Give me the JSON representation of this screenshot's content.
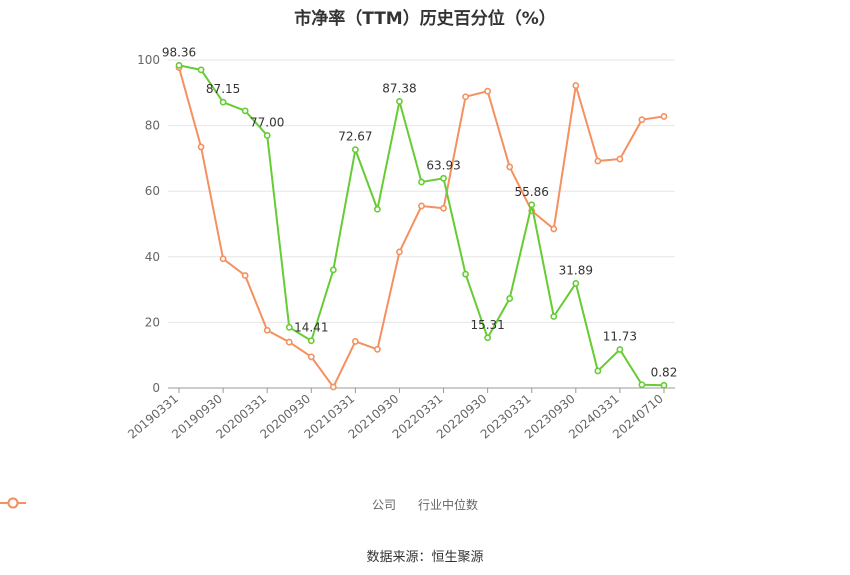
{
  "title": "市净率（TTM）历史百分位（%）",
  "source": "数据来源：恒生聚源",
  "chart_data": {
    "type": "line",
    "title": "市净率（TTM）历史百分位（%）",
    "ylim": [
      0,
      100
    ],
    "y_ticks": [
      "0",
      "20",
      "40",
      "60",
      "80",
      "100"
    ],
    "x_tick_labels": [
      "20190331",
      "20190930",
      "20200331",
      "20200930",
      "20210331",
      "20210930",
      "20220331",
      "20220930",
      "20230331",
      "20230930",
      "20240331",
      "20240710"
    ],
    "x_tick_positions": [
      0,
      2,
      4,
      6,
      8,
      10,
      12,
      14,
      16,
      18,
      20,
      22
    ],
    "grid": true,
    "legend_position": "bottom",
    "series": [
      {
        "name": "公司",
        "color": "#66cc33",
        "values": [
          98.36,
          97.0,
          87.15,
          84.5,
          77.0,
          18.5,
          14.41,
          36.0,
          72.67,
          54.5,
          87.38,
          62.8,
          63.93,
          34.7,
          15.31,
          27.3,
          55.86,
          21.8,
          31.89,
          5.2,
          11.73,
          1.0,
          0.82
        ],
        "labels": [
          "98.36",
          "",
          "87.15",
          "",
          "77.00",
          "",
          "14.41",
          "",
          "72.67",
          "",
          "87.38",
          "",
          "63.93",
          "",
          "15.31",
          "",
          "55.86",
          "",
          "31.89",
          "",
          "11.73",
          "",
          "0.82"
        ]
      },
      {
        "name": "行业中位数",
        "color": "#f5905f",
        "values": [
          97.7,
          73.5,
          39.4,
          34.3,
          17.6,
          14.0,
          9.5,
          0.3,
          14.2,
          11.8,
          41.5,
          55.5,
          54.8,
          88.8,
          90.5,
          67.4,
          54.0,
          48.5,
          92.2,
          69.2,
          69.8,
          81.8,
          82.8
        ]
      }
    ]
  }
}
